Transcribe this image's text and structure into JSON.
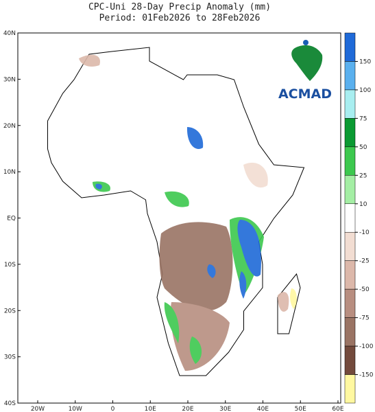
{
  "header": {
    "title": "CPC-Uni 28-Day Precip Anomaly (mm)",
    "subtitle": "Period: 01Feb2026 to 28Feb2026"
  },
  "map": {
    "lat_labels": [
      "40N",
      "30N",
      "20N",
      "10N",
      "EQ",
      "10S",
      "20S",
      "30S",
      "40S"
    ],
    "lon_labels": [
      "20W",
      "10W",
      "0",
      "10E",
      "20E",
      "30E",
      "40E",
      "50E",
      "60E"
    ]
  },
  "colorbar": {
    "labels": [
      150,
      100,
      75,
      50,
      25,
      10,
      -10,
      -25,
      -50,
      -75,
      -100,
      -150
    ],
    "colors": [
      "#1f6ad8",
      "#5ab0ee",
      "#a8eef0",
      "#0a9a32",
      "#3cc84e",
      "#a4eea4",
      "#ffffff",
      "#f2ddd2",
      "#dcb8aa",
      "#b88e80",
      "#9a7464",
      "#734a3c",
      "#fff8a0"
    ]
  },
  "logo": {
    "text": "ACMAD"
  }
}
